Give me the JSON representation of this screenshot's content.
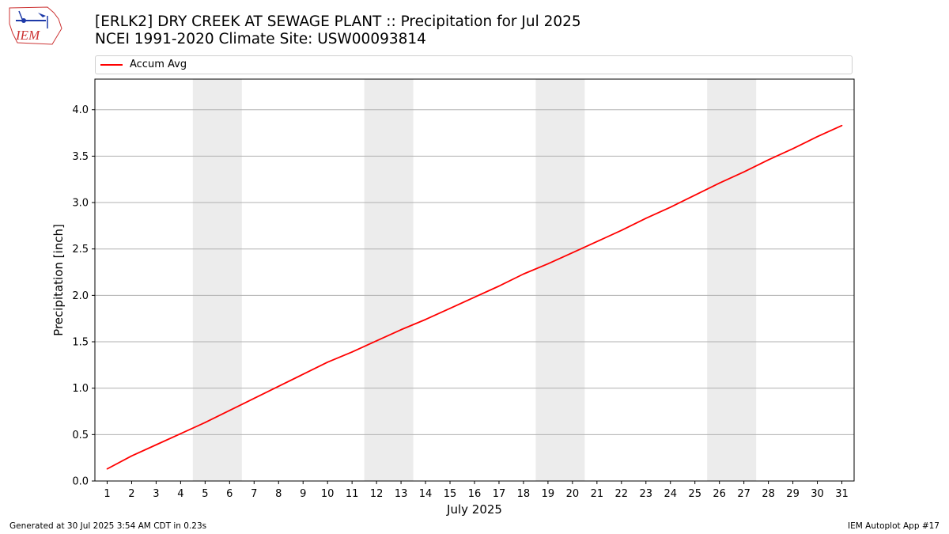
{
  "header": {
    "title_line1": "[ERLK2] DRY CREEK AT SEWAGE PLANT :: Precipitation for Jul 2025",
    "title_line2": "NCEI 1991-2020 Climate Site: USW00093814"
  },
  "logo": {
    "text": "IEM",
    "icon": "iowa-environmental-mesonet-logo"
  },
  "footer": {
    "generated": "Generated at 30 Jul 2025 3:54 AM CDT in 0.23s",
    "app": "IEM Autoplot App #17"
  },
  "colors": {
    "series": "#ff0000",
    "weekend_band": "#ececec",
    "grid": "#b0b0b0"
  },
  "chart_data": {
    "type": "line",
    "title": "[ERLK2] DRY CREEK AT SEWAGE PLANT :: Precipitation for Jul 2025",
    "xlabel": "July 2025",
    "ylabel": "Precipitation [inch]",
    "xlim": [
      0.5,
      31.5
    ],
    "ylim": [
      0,
      4.33
    ],
    "x_ticks": [
      1,
      2,
      3,
      4,
      5,
      6,
      7,
      8,
      9,
      10,
      11,
      12,
      13,
      14,
      15,
      16,
      17,
      18,
      19,
      20,
      21,
      22,
      23,
      24,
      25,
      26,
      27,
      28,
      29,
      30,
      31
    ],
    "y_ticks": [
      "0.0",
      "0.5",
      "1.0",
      "1.5",
      "2.0",
      "2.5",
      "3.0",
      "3.5",
      "4.0"
    ],
    "grid": "horizontal",
    "legend_position": "top",
    "shaded_weekends": [
      [
        5,
        6
      ],
      [
        12,
        13
      ],
      [
        19,
        20
      ],
      [
        26,
        27
      ]
    ],
    "series": [
      {
        "name": "Accum Avg",
        "x": [
          1,
          2,
          3,
          4,
          5,
          6,
          7,
          8,
          9,
          10,
          11,
          12,
          13,
          14,
          15,
          16,
          17,
          18,
          19,
          20,
          21,
          22,
          23,
          24,
          25,
          26,
          27,
          28,
          29,
          30,
          31
        ],
        "values": [
          0.13,
          0.27,
          0.39,
          0.51,
          0.63,
          0.76,
          0.89,
          1.02,
          1.15,
          1.28,
          1.39,
          1.51,
          1.63,
          1.74,
          1.86,
          1.98,
          2.1,
          2.23,
          2.34,
          2.46,
          2.58,
          2.7,
          2.83,
          2.95,
          3.08,
          3.21,
          3.33,
          3.46,
          3.58,
          3.71,
          3.83
        ]
      }
    ]
  }
}
